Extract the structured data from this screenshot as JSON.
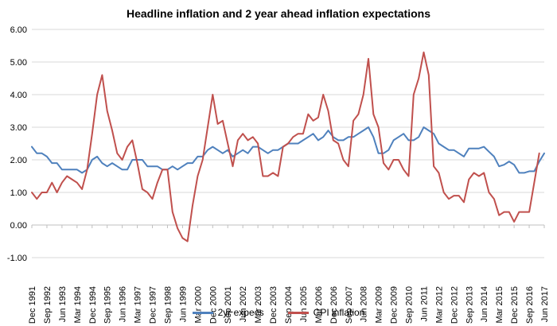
{
  "chart_data": {
    "type": "line",
    "title": "Headline inflation and 2 year ahead inflation expectations",
    "xlabel": "",
    "ylabel": "",
    "ylim": [
      -1.0,
      6.0
    ],
    "y_ticks": [
      "-1.00",
      "0.00",
      "1.00",
      "2.00",
      "3.00",
      "4.00",
      "5.00",
      "6.00"
    ],
    "grid": "horizontal",
    "legend_position": "bottom",
    "x_tick_labels": [
      "Dec 1991",
      "Sep 1992",
      "Jun 1993",
      "Mar 1994",
      "Dec 1994",
      "Sep 1995",
      "Jun 1996",
      "Mar 1997",
      "Dec 1997",
      "Sep 1998",
      "Jun 1999",
      "Mar 2000",
      "Dec 2000",
      "Sep 2001",
      "Jun 2002",
      "Mar 2003",
      "Dec 2003",
      "Sep 2004",
      "Jun 2005",
      "Mar 2006",
      "Dec 2006",
      "Sep 2007",
      "Jun 2008",
      "Mar 2009",
      "Dec 2009",
      "Sep 2010",
      "Jun 2011",
      "Mar 2012",
      "Dec 2012",
      "Sep 2013",
      "Jun 2014",
      "Mar 2015",
      "Dec 2015",
      "Sep 2016",
      "Jun 2017"
    ],
    "series": [
      {
        "name": "2yr expecs",
        "color": "#4F81BD",
        "values": [
          2.4,
          2.2,
          2.2,
          2.1,
          1.9,
          1.9,
          1.7,
          1.7,
          1.7,
          1.7,
          1.6,
          1.7,
          2.0,
          2.1,
          1.9,
          1.8,
          1.9,
          1.8,
          1.7,
          1.7,
          2.0,
          2.0,
          2.0,
          1.8,
          1.8,
          1.8,
          1.7,
          1.7,
          1.8,
          1.7,
          1.8,
          1.9,
          1.9,
          2.1,
          2.1,
          2.3,
          2.4,
          2.3,
          2.2,
          2.3,
          2.1,
          2.2,
          2.3,
          2.2,
          2.4,
          2.4,
          2.3,
          2.2,
          2.3,
          2.3,
          2.4,
          2.5,
          2.5,
          2.5,
          2.6,
          2.7,
          2.8,
          2.6,
          2.7,
          2.9,
          2.7,
          2.6,
          2.6,
          2.7,
          2.7,
          2.8,
          2.9,
          3.0,
          2.7,
          2.2,
          2.2,
          2.3,
          2.6,
          2.7,
          2.8,
          2.6,
          2.6,
          2.7,
          3.0,
          2.9,
          2.8,
          2.5,
          2.4,
          2.3,
          2.3,
          2.2,
          2.1,
          2.35,
          2.35,
          2.35,
          2.4,
          2.25,
          2.1,
          1.8,
          1.85,
          1.95,
          1.85,
          1.6,
          1.6,
          1.65,
          1.65,
          1.95,
          2.2
        ]
      },
      {
        "name": "CPI inflation",
        "color": "#C0504D",
        "values": [
          1.0,
          0.8,
          1.0,
          1.0,
          1.3,
          1.0,
          1.3,
          1.5,
          1.4,
          1.3,
          1.1,
          1.7,
          2.8,
          4.0,
          4.6,
          3.5,
          2.9,
          2.2,
          2.0,
          2.4,
          2.6,
          1.9,
          1.1,
          1.0,
          0.8,
          1.3,
          1.7,
          1.7,
          0.4,
          -0.1,
          -0.4,
          -0.5,
          0.6,
          1.5,
          2.0,
          3.0,
          4.0,
          3.1,
          3.2,
          2.5,
          1.8,
          2.6,
          2.8,
          2.6,
          2.7,
          2.5,
          1.5,
          1.5,
          1.6,
          1.5,
          2.4,
          2.5,
          2.7,
          2.8,
          2.8,
          3.4,
          3.2,
          3.3,
          4.0,
          3.5,
          2.6,
          2.5,
          2.0,
          1.8,
          3.2,
          3.4,
          4.0,
          5.1,
          3.4,
          3.0,
          1.9,
          1.7,
          2.0,
          2.0,
          1.7,
          1.5,
          4.0,
          4.5,
          5.3,
          4.6,
          1.8,
          1.6,
          1.0,
          0.8,
          0.9,
          0.9,
          0.7,
          1.4,
          1.6,
          1.5,
          1.6,
          1.0,
          0.8,
          0.3,
          0.4,
          0.4,
          0.1,
          0.4,
          0.4,
          0.4,
          1.3,
          2.2
        ]
      }
    ]
  }
}
